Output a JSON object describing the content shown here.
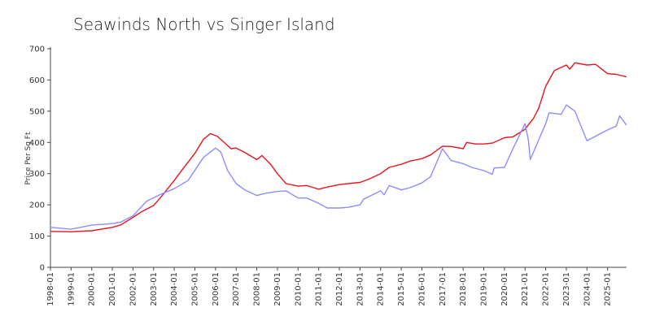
{
  "chart_data": {
    "type": "line",
    "title": "Seawinds North vs Singer Island",
    "xlabel": "",
    "ylabel": "Price Per Sq Ft",
    "ylim": [
      0,
      700
    ],
    "yticks": [
      0,
      100,
      200,
      300,
      400,
      500,
      600,
      700
    ],
    "xlim": [
      1998.0,
      2025.92
    ],
    "xticks": [
      "1998-01",
      "1999-01",
      "2000-01",
      "2001-01",
      "2002-01",
      "2003-01",
      "2004-01",
      "2005-01",
      "2006-01",
      "2007-01",
      "2008-01",
      "2009-01",
      "2010-01",
      "2011-01",
      "2012-01",
      "2013-01",
      "2014-01",
      "2015-01",
      "2016-01",
      "2017-01",
      "2018-01",
      "2019-01",
      "2020-01",
      "2021-01",
      "2022-01",
      "2023-01",
      "2024-01",
      "2025-01"
    ],
    "grid": false,
    "colors": {
      "series_red": "#e8141e",
      "series_blue": "#8c8cff"
    },
    "series": [
      {
        "color": "#e8141e",
        "points": [
          [
            "1998-01",
            115
          ],
          [
            "1999-01",
            114
          ],
          [
            "2000-01",
            117
          ],
          [
            "2001-01",
            128
          ],
          [
            "2001-06",
            136
          ],
          [
            "2002-01",
            160
          ],
          [
            "2002-06",
            178
          ],
          [
            "2003-01",
            198
          ],
          [
            "2003-06",
            230
          ],
          [
            "2004-01",
            278
          ],
          [
            "2004-06",
            315
          ],
          [
            "2005-01",
            365
          ],
          [
            "2005-06",
            410
          ],
          [
            "2005-10",
            428
          ],
          [
            "2006-02",
            420
          ],
          [
            "2006-08",
            390
          ],
          [
            "2006-10",
            380
          ],
          [
            "2007-01",
            382
          ],
          [
            "2007-06",
            368
          ],
          [
            "2008-01",
            345
          ],
          [
            "2008-04",
            358
          ],
          [
            "2008-09",
            330
          ],
          [
            "2009-01",
            300
          ],
          [
            "2009-06",
            268
          ],
          [
            "2010-01",
            260
          ],
          [
            "2010-06",
            262
          ],
          [
            "2011-01",
            250
          ],
          [
            "2011-06",
            257
          ],
          [
            "2012-01",
            265
          ],
          [
            "2012-06",
            268
          ],
          [
            "2013-01",
            272
          ],
          [
            "2013-06",
            282
          ],
          [
            "2014-01",
            300
          ],
          [
            "2014-06",
            320
          ],
          [
            "2015-01",
            330
          ],
          [
            "2015-06",
            340
          ],
          [
            "2016-01",
            348
          ],
          [
            "2016-06",
            360
          ],
          [
            "2017-01",
            388
          ],
          [
            "2017-06",
            387
          ],
          [
            "2018-01",
            380
          ],
          [
            "2018-03",
            400
          ],
          [
            "2018-08",
            395
          ],
          [
            "2019-01",
            395
          ],
          [
            "2019-06",
            398
          ],
          [
            "2020-01",
            415
          ],
          [
            "2020-06",
            418
          ],
          [
            "2021-01",
            442
          ],
          [
            "2021-06",
            478
          ],
          [
            "2021-09",
            510
          ],
          [
            "2022-01",
            580
          ],
          [
            "2022-06",
            630
          ],
          [
            "2023-01",
            648
          ],
          [
            "2023-03",
            635
          ],
          [
            "2023-06",
            655
          ],
          [
            "2024-01",
            648
          ],
          [
            "2024-06",
            650
          ],
          [
            "2025-01",
            620
          ],
          [
            "2025-06",
            618
          ],
          [
            "2025-12",
            610
          ]
        ]
      },
      {
        "color": "#8c8cff",
        "points": [
          [
            "1998-01",
            128
          ],
          [
            "1999-01",
            122
          ],
          [
            "2000-01",
            135
          ],
          [
            "2001-01",
            140
          ],
          [
            "2001-06",
            145
          ],
          [
            "2002-01",
            165
          ],
          [
            "2002-09",
            212
          ],
          [
            "2003-06",
            236
          ],
          [
            "2004-01",
            252
          ],
          [
            "2004-09",
            278
          ],
          [
            "2005-06",
            352
          ],
          [
            "2006-01",
            382
          ],
          [
            "2006-04",
            370
          ],
          [
            "2006-08",
            310
          ],
          [
            "2007-01",
            268
          ],
          [
            "2007-06",
            248
          ],
          [
            "2008-01",
            230
          ],
          [
            "2008-06",
            237
          ],
          [
            "2009-01",
            243
          ],
          [
            "2009-06",
            245
          ],
          [
            "2010-01",
            222
          ],
          [
            "2010-06",
            222
          ],
          [
            "2011-01",
            205
          ],
          [
            "2011-06",
            190
          ],
          [
            "2012-01",
            190
          ],
          [
            "2012-06",
            192
          ],
          [
            "2013-01",
            200
          ],
          [
            "2013-03",
            218
          ],
          [
            "2014-01",
            245
          ],
          [
            "2014-03",
            232
          ],
          [
            "2014-06",
            262
          ],
          [
            "2015-01",
            248
          ],
          [
            "2015-06",
            255
          ],
          [
            "2016-01",
            270
          ],
          [
            "2016-06",
            290
          ],
          [
            "2017-01",
            380
          ],
          [
            "2017-06",
            342
          ],
          [
            "2018-01",
            332
          ],
          [
            "2018-06",
            320
          ],
          [
            "2019-01",
            310
          ],
          [
            "2019-06",
            298
          ],
          [
            "2019-07",
            318
          ],
          [
            "2020-01",
            320
          ],
          [
            "2020-06",
            380
          ],
          [
            "2021-01",
            460
          ],
          [
            "2021-03",
            405
          ],
          [
            "2021-04",
            345
          ],
          [
            "2022-01",
            460
          ],
          [
            "2022-03",
            495
          ],
          [
            "2022-10",
            490
          ],
          [
            "2023-01",
            520
          ],
          [
            "2023-06",
            500
          ],
          [
            "2024-01",
            405
          ],
          [
            "2024-06",
            420
          ],
          [
            "2025-01",
            440
          ],
          [
            "2025-06",
            452
          ],
          [
            "2025-08",
            485
          ],
          [
            "2025-12",
            455
          ]
        ]
      }
    ]
  }
}
